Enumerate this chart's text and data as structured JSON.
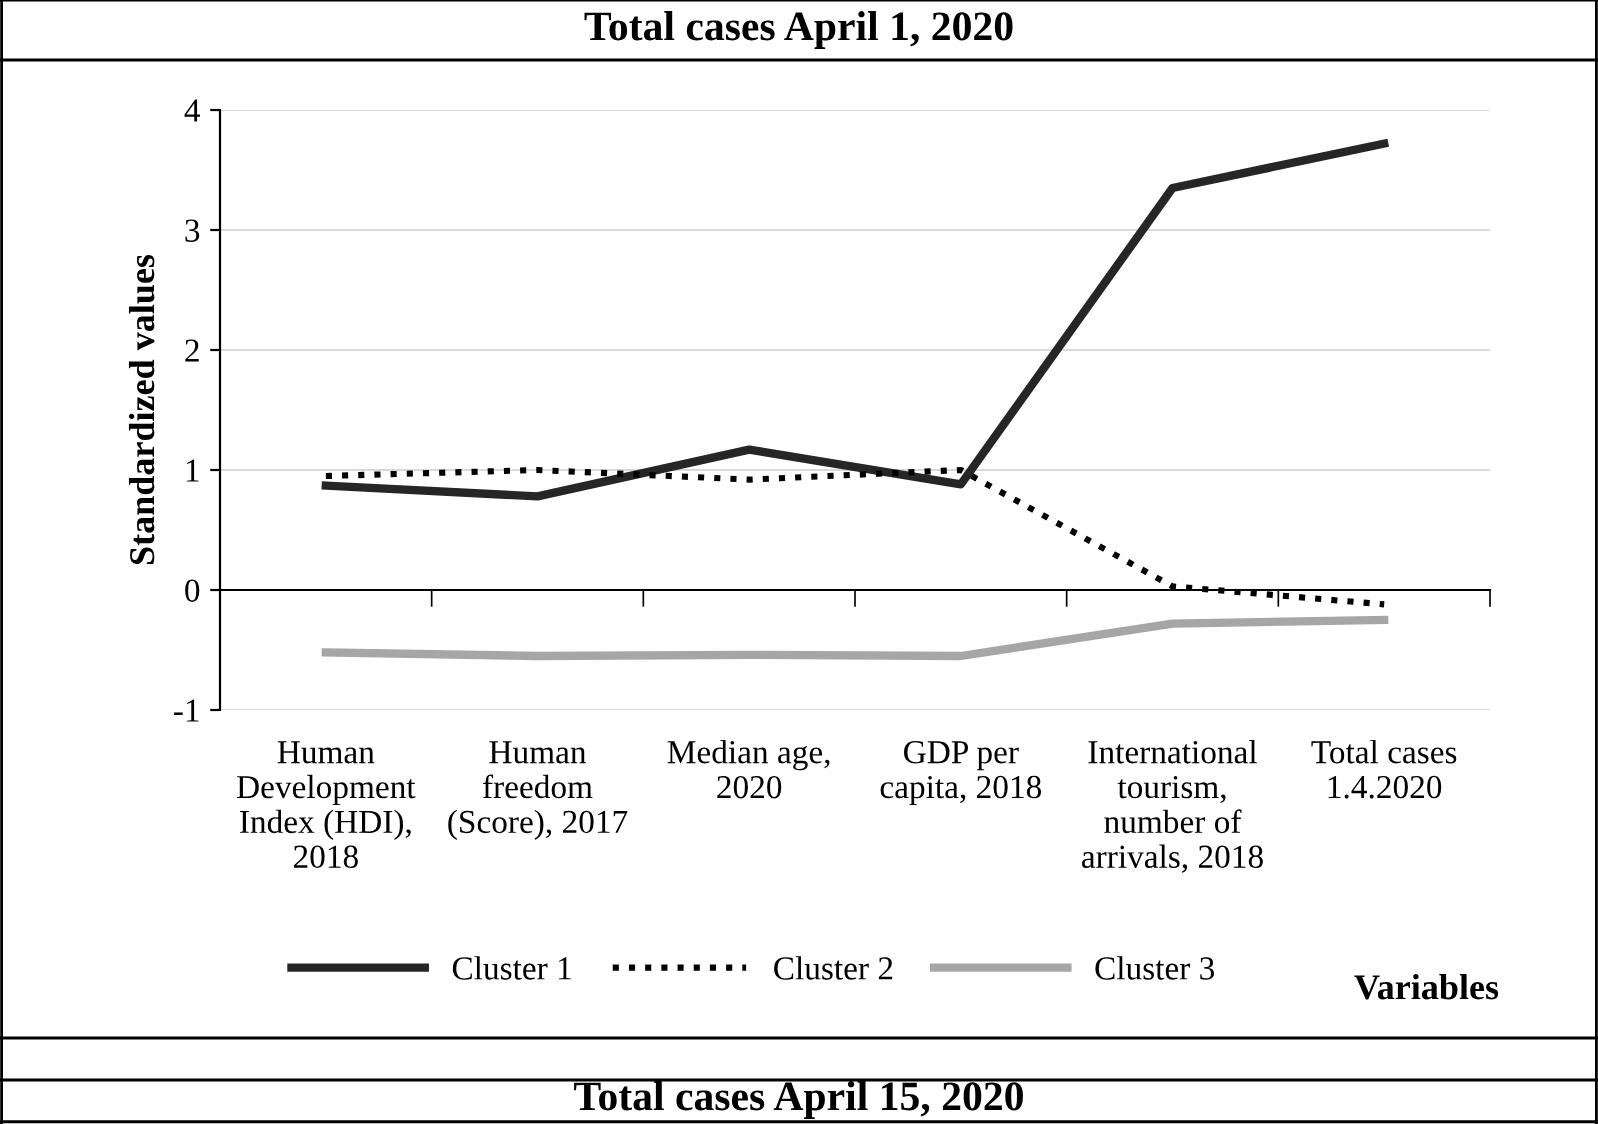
{
  "chart_data": {
    "type": "line",
    "title": "Total cases April 1, 2020",
    "ylabel": "Standardized values",
    "xlabel": "Variables",
    "categories": [
      "Human\nDevelopment\nIndex (HDI),\n2018",
      "Human\nfreedom\n(Score), 2017",
      "Median age,\n2020",
      "GDP per\ncapita, 2018",
      "International\ntourism,\nnumber of\narrivals, 2018",
      "Total cases\n1.4.2020"
    ],
    "series": [
      {
        "name": "Cluster 1",
        "color": "#262626",
        "line_style": "solid",
        "values": [
          0.87,
          0.78,
          1.17,
          0.88,
          3.35,
          3.72
        ]
      },
      {
        "name": "Cluster 2",
        "color": "#000000",
        "line_style": "dotted",
        "values": [
          0.95,
          1.0,
          0.92,
          1.0,
          0.03,
          -0.12
        ]
      },
      {
        "name": "Cluster 3",
        "color": "#a6a6a6",
        "line_style": "solid",
        "values": [
          -0.52,
          -0.55,
          -0.54,
          -0.55,
          -0.28,
          -0.25
        ]
      }
    ],
    "ylim": [
      -1,
      4
    ],
    "yticks": [
      -1,
      0,
      1,
      2,
      3,
      4
    ],
    "grid": "y",
    "legend": "bottom",
    "marker": "none",
    "annotations": [
      "Total cases April 15, 2020"
    ]
  }
}
